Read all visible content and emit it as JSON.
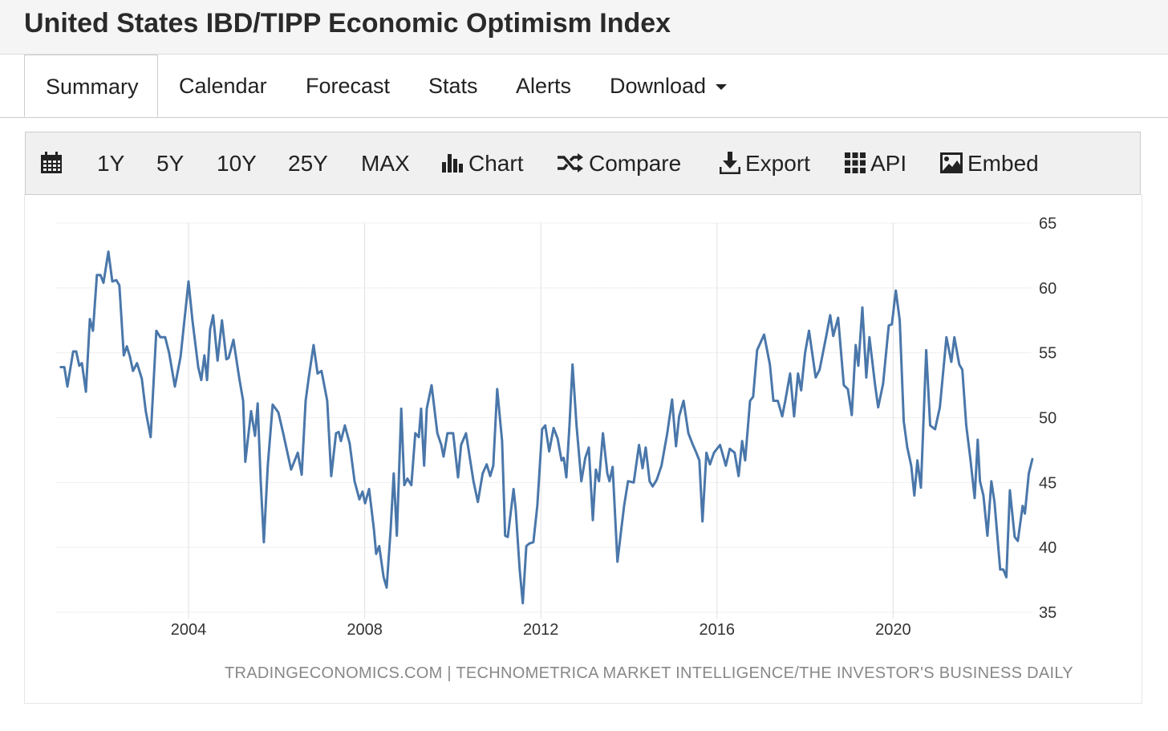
{
  "header": {
    "title": "United States IBD/TIPP Economic Optimism Index"
  },
  "tabs": [
    {
      "label": "Summary",
      "active": true
    },
    {
      "label": "Calendar"
    },
    {
      "label": "Forecast"
    },
    {
      "label": "Stats"
    },
    {
      "label": "Alerts"
    },
    {
      "label": "Download"
    }
  ],
  "toolbar": {
    "ranges": [
      "1Y",
      "5Y",
      "10Y",
      "25Y",
      "MAX"
    ],
    "chart": "Chart",
    "compare": "Compare",
    "export": "Export",
    "api": "API",
    "embed": "Embed"
  },
  "footer": {
    "source": "TRADINGECONOMICS.COM  |  TECHNOMETRICA MARKET INTELLIGENCE/THE INVESTOR'S BUSINESS DAILY"
  },
  "colors": {
    "line": "#4a77aa",
    "grid": "#e0e0e0"
  },
  "chart_data": {
    "type": "line",
    "title": "United States IBD/TIPP Economic Optimism Index",
    "xlabel": "",
    "ylabel": "",
    "ylim": [
      35,
      65
    ],
    "yticks": [
      35,
      40,
      45,
      50,
      55,
      60,
      65
    ],
    "xticks": [
      2004,
      2008,
      2012,
      2016,
      2020
    ],
    "grid": true,
    "series": [
      {
        "name": "IBD/TIPP Economic Optimism Index",
        "points": [
          [
            2001.1,
            53.9
          ],
          [
            2001.18,
            53.9
          ],
          [
            2001.25,
            52.4
          ],
          [
            2001.38,
            55.1
          ],
          [
            2001.45,
            55.1
          ],
          [
            2001.52,
            54.0
          ],
          [
            2001.58,
            54.2
          ],
          [
            2001.67,
            52.0
          ],
          [
            2001.76,
            57.6
          ],
          [
            2001.83,
            56.7
          ],
          [
            2001.92,
            61.0
          ],
          [
            2002.0,
            61.0
          ],
          [
            2002.07,
            60.4
          ],
          [
            2002.18,
            62.8
          ],
          [
            2002.27,
            60.5
          ],
          [
            2002.36,
            60.6
          ],
          [
            2002.43,
            60.2
          ],
          [
            2002.53,
            54.8
          ],
          [
            2002.6,
            55.5
          ],
          [
            2002.67,
            54.7
          ],
          [
            2002.74,
            53.6
          ],
          [
            2002.83,
            54.2
          ],
          [
            2002.94,
            53.0
          ],
          [
            2003.03,
            50.5
          ],
          [
            2003.14,
            48.5
          ],
          [
            2003.27,
            56.7
          ],
          [
            2003.36,
            56.2
          ],
          [
            2003.47,
            56.2
          ],
          [
            2003.56,
            55.0
          ],
          [
            2003.69,
            52.4
          ],
          [
            2003.82,
            54.7
          ],
          [
            2004.0,
            60.5
          ],
          [
            2004.09,
            57.5
          ],
          [
            2004.22,
            53.9
          ],
          [
            2004.29,
            52.9
          ],
          [
            2004.36,
            54.8
          ],
          [
            2004.42,
            52.9
          ],
          [
            2004.49,
            56.8
          ],
          [
            2004.56,
            57.9
          ],
          [
            2004.66,
            54.4
          ],
          [
            2004.76,
            57.5
          ],
          [
            2004.86,
            54.5
          ],
          [
            2004.91,
            54.6
          ],
          [
            2005.02,
            56.0
          ],
          [
            2005.15,
            53.1
          ],
          [
            2005.24,
            51.3
          ],
          [
            2005.29,
            46.6
          ],
          [
            2005.42,
            50.5
          ],
          [
            2005.51,
            48.6
          ],
          [
            2005.57,
            51.1
          ],
          [
            2005.64,
            45.1
          ],
          [
            2005.71,
            40.4
          ],
          [
            2005.8,
            46.3
          ],
          [
            2005.91,
            51.0
          ],
          [
            2006.04,
            50.4
          ],
          [
            2006.15,
            48.8
          ],
          [
            2006.33,
            46.0
          ],
          [
            2006.48,
            47.3
          ],
          [
            2006.57,
            45.6
          ],
          [
            2006.66,
            51.3
          ],
          [
            2006.73,
            53.1
          ],
          [
            2006.84,
            55.6
          ],
          [
            2006.93,
            53.4
          ],
          [
            2007.02,
            53.6
          ],
          [
            2007.15,
            51.3
          ],
          [
            2007.24,
            45.5
          ],
          [
            2007.35,
            48.8
          ],
          [
            2007.41,
            48.9
          ],
          [
            2007.46,
            48.2
          ],
          [
            2007.55,
            49.4
          ],
          [
            2007.66,
            48.0
          ],
          [
            2007.77,
            45.1
          ],
          [
            2007.88,
            43.7
          ],
          [
            2007.95,
            44.3
          ],
          [
            2008.01,
            43.4
          ],
          [
            2008.1,
            44.5
          ],
          [
            2008.21,
            41.4
          ],
          [
            2008.26,
            39.5
          ],
          [
            2008.33,
            40.1
          ],
          [
            2008.43,
            37.7
          ],
          [
            2008.5,
            36.9
          ],
          [
            2008.59,
            41.4
          ],
          [
            2008.66,
            45.7
          ],
          [
            2008.73,
            40.9
          ],
          [
            2008.83,
            50.7
          ],
          [
            2008.9,
            44.8
          ],
          [
            2008.97,
            45.3
          ],
          [
            2009.06,
            44.8
          ],
          [
            2009.15,
            48.8
          ],
          [
            2009.23,
            48.5
          ],
          [
            2009.28,
            50.7
          ],
          [
            2009.35,
            46.3
          ],
          [
            2009.41,
            50.7
          ],
          [
            2009.52,
            52.5
          ],
          [
            2009.65,
            48.8
          ],
          [
            2009.74,
            47.9
          ],
          [
            2009.79,
            47.0
          ],
          [
            2009.88,
            48.8
          ],
          [
            2010.01,
            48.8
          ],
          [
            2010.12,
            45.4
          ],
          [
            2010.19,
            47.9
          ],
          [
            2010.3,
            48.8
          ],
          [
            2010.47,
            45.1
          ],
          [
            2010.57,
            43.5
          ],
          [
            2010.68,
            45.7
          ],
          [
            2010.77,
            46.4
          ],
          [
            2010.85,
            45.5
          ],
          [
            2010.92,
            46.3
          ],
          [
            2011.01,
            52.2
          ],
          [
            2011.12,
            48.2
          ],
          [
            2011.19,
            40.9
          ],
          [
            2011.25,
            40.8
          ],
          [
            2011.38,
            44.5
          ],
          [
            2011.43,
            42.9
          ],
          [
            2011.52,
            38.3
          ],
          [
            2011.59,
            35.7
          ],
          [
            2011.67,
            40.1
          ],
          [
            2011.74,
            40.3
          ],
          [
            2011.83,
            40.4
          ],
          [
            2011.92,
            43.2
          ],
          [
            2012.03,
            49.1
          ],
          [
            2012.1,
            49.4
          ],
          [
            2012.19,
            47.4
          ],
          [
            2012.29,
            49.2
          ],
          [
            2012.38,
            48.4
          ],
          [
            2012.47,
            46.7
          ],
          [
            2012.52,
            46.9
          ],
          [
            2012.58,
            45.4
          ],
          [
            2012.65,
            49.4
          ],
          [
            2012.72,
            54.1
          ],
          [
            2012.81,
            49.4
          ],
          [
            2012.92,
            45.1
          ],
          [
            2013.01,
            46.9
          ],
          [
            2013.09,
            47.7
          ],
          [
            2013.18,
            42.1
          ],
          [
            2013.25,
            46.0
          ],
          [
            2013.32,
            45.1
          ],
          [
            2013.41,
            48.8
          ],
          [
            2013.51,
            45.7
          ],
          [
            2013.56,
            45.1
          ],
          [
            2013.63,
            46.2
          ],
          [
            2013.74,
            38.9
          ],
          [
            2013.82,
            41.2
          ],
          [
            2013.89,
            43.2
          ],
          [
            2013.98,
            45.1
          ],
          [
            2014.11,
            45.0
          ],
          [
            2014.23,
            47.9
          ],
          [
            2014.31,
            46.1
          ],
          [
            2014.38,
            47.7
          ],
          [
            2014.47,
            45.1
          ],
          [
            2014.54,
            44.7
          ],
          [
            2014.63,
            45.2
          ],
          [
            2014.74,
            46.3
          ],
          [
            2014.87,
            48.8
          ],
          [
            2014.98,
            51.4
          ],
          [
            2015.07,
            47.8
          ],
          [
            2015.14,
            50.1
          ],
          [
            2015.24,
            51.3
          ],
          [
            2015.35,
            48.8
          ],
          [
            2015.44,
            48.0
          ],
          [
            2015.53,
            47.3
          ],
          [
            2015.6,
            46.7
          ],
          [
            2015.67,
            42.0
          ],
          [
            2015.76,
            47.3
          ],
          [
            2015.84,
            46.4
          ],
          [
            2015.93,
            47.3
          ],
          [
            2016.07,
            47.9
          ],
          [
            2016.2,
            46.3
          ],
          [
            2016.29,
            47.6
          ],
          [
            2016.4,
            47.3
          ],
          [
            2016.49,
            45.5
          ],
          [
            2016.57,
            48.2
          ],
          [
            2016.64,
            46.7
          ],
          [
            2016.75,
            51.3
          ],
          [
            2016.82,
            51.6
          ],
          [
            2016.91,
            55.2
          ],
          [
            2017.07,
            56.4
          ],
          [
            2017.2,
            54.1
          ],
          [
            2017.28,
            51.3
          ],
          [
            2017.38,
            51.3
          ],
          [
            2017.48,
            50.1
          ],
          [
            2017.55,
            51.3
          ],
          [
            2017.66,
            53.4
          ],
          [
            2017.75,
            50.1
          ],
          [
            2017.84,
            53.4
          ],
          [
            2017.91,
            52.1
          ],
          [
            2018.0,
            55.0
          ],
          [
            2018.09,
            56.7
          ],
          [
            2018.24,
            53.1
          ],
          [
            2018.33,
            53.7
          ],
          [
            2018.48,
            56.3
          ],
          [
            2018.57,
            57.9
          ],
          [
            2018.64,
            56.3
          ],
          [
            2018.75,
            57.7
          ],
          [
            2018.88,
            52.5
          ],
          [
            2018.97,
            52.2
          ],
          [
            2019.06,
            50.2
          ],
          [
            2019.15,
            55.6
          ],
          [
            2019.21,
            54.0
          ],
          [
            2019.3,
            58.5
          ],
          [
            2019.39,
            53.1
          ],
          [
            2019.46,
            56.2
          ],
          [
            2019.59,
            52.5
          ],
          [
            2019.66,
            50.8
          ],
          [
            2019.77,
            52.6
          ],
          [
            2019.9,
            57.1
          ],
          [
            2019.97,
            57.2
          ],
          [
            2020.06,
            59.8
          ],
          [
            2020.15,
            57.5
          ],
          [
            2020.24,
            49.7
          ],
          [
            2020.32,
            47.7
          ],
          [
            2020.41,
            46.3
          ],
          [
            2020.48,
            44.0
          ],
          [
            2020.55,
            46.7
          ],
          [
            2020.63,
            44.6
          ],
          [
            2020.75,
            55.2
          ],
          [
            2020.84,
            49.4
          ],
          [
            2020.95,
            49.1
          ],
          [
            2021.06,
            50.8
          ],
          [
            2021.21,
            56.2
          ],
          [
            2021.32,
            54.3
          ],
          [
            2021.39,
            56.2
          ],
          [
            2021.5,
            54.1
          ],
          [
            2021.57,
            53.7
          ],
          [
            2021.66,
            49.4
          ],
          [
            2021.75,
            46.9
          ],
          [
            2021.85,
            43.8
          ],
          [
            2021.92,
            48.3
          ],
          [
            2021.97,
            45.1
          ],
          [
            2022.05,
            44.0
          ],
          [
            2022.14,
            40.9
          ],
          [
            2022.23,
            45.1
          ],
          [
            2022.3,
            43.5
          ],
          [
            2022.43,
            38.3
          ],
          [
            2022.5,
            38.3
          ],
          [
            2022.57,
            37.7
          ],
          [
            2022.65,
            44.4
          ],
          [
            2022.76,
            40.8
          ],
          [
            2022.83,
            40.5
          ],
          [
            2022.94,
            43.2
          ],
          [
            2022.99,
            42.6
          ],
          [
            2023.08,
            45.7
          ],
          [
            2023.16,
            46.8
          ]
        ]
      }
    ]
  }
}
